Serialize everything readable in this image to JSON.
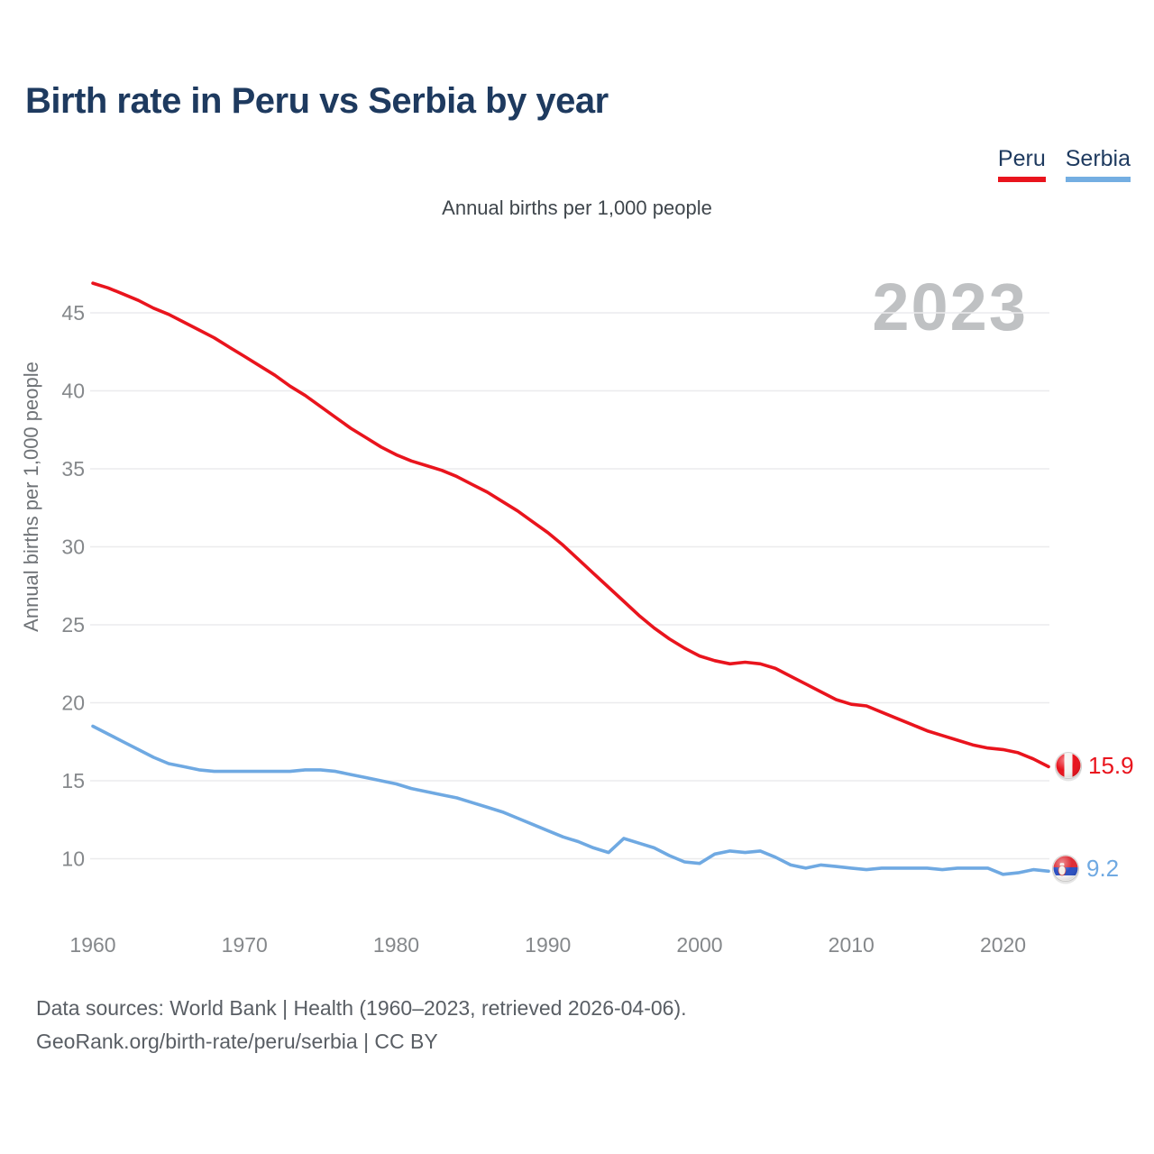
{
  "header": {
    "title": "Birth rate in Peru vs Serbia by year",
    "subtitle": "Annual births per 1,000 people"
  },
  "legend": {
    "items": [
      {
        "label": "Peru",
        "color": "#e9141d"
      },
      {
        "label": "Serbia",
        "color": "#74aee2"
      }
    ]
  },
  "watermark": "2023",
  "footer": {
    "line1": "Data sources: World Bank | Health (1960–2023, retrieved 2026-04-06).",
    "line2": "GeoRank.org/birth-rate/peru/serbia | CC BY"
  },
  "colors": {
    "peru_line": "#e9141d",
    "serbia_line": "#6fa9e2",
    "title_navy": "#1e3a5f",
    "grid": "#ebebed",
    "tick_gray": "#85888b",
    "watermark_gray": "#bfc1c3",
    "serbia_flag_red": "#dd2c35",
    "serbia_flag_blue": "#2a4fc2",
    "peru_flag_red": "#e8121c"
  },
  "chart_data": {
    "type": "line",
    "title": "Birth rate in Peru vs Serbia by year",
    "subtitle": "Annual births per 1,000 people",
    "ylabel": "Annual births per 1,000 people",
    "xlabel": "",
    "grid": "horizontal",
    "legend_position": "top-right",
    "watermark": "2023",
    "xlim": [
      1960,
      2023
    ],
    "ylim": [
      8,
      47.5
    ],
    "xticks": [
      1960,
      1970,
      1980,
      1990,
      2000,
      2010,
      2020
    ],
    "yticks": [
      10,
      15,
      20,
      25,
      30,
      35,
      40,
      45
    ],
    "x": [
      1960,
      1961,
      1962,
      1963,
      1964,
      1965,
      1966,
      1967,
      1968,
      1969,
      1970,
      1971,
      1972,
      1973,
      1974,
      1975,
      1976,
      1977,
      1978,
      1979,
      1980,
      1981,
      1982,
      1983,
      1984,
      1985,
      1986,
      1987,
      1988,
      1989,
      1990,
      1991,
      1992,
      1993,
      1994,
      1995,
      1996,
      1997,
      1998,
      1999,
      2000,
      2001,
      2002,
      2003,
      2004,
      2005,
      2006,
      2007,
      2008,
      2009,
      2010,
      2011,
      2012,
      2013,
      2014,
      2015,
      2016,
      2017,
      2018,
      2019,
      2020,
      2021,
      2022,
      2023
    ],
    "series": [
      {
        "name": "Peru",
        "color": "#e9141d",
        "end_label": "15.9",
        "end_value": 15.9,
        "values": [
          46.9,
          46.6,
          46.2,
          45.8,
          45.3,
          44.9,
          44.4,
          43.9,
          43.4,
          42.8,
          42.2,
          41.6,
          41.0,
          40.3,
          39.7,
          39.0,
          38.3,
          37.6,
          37.0,
          36.4,
          35.9,
          35.5,
          35.2,
          34.9,
          34.5,
          34.0,
          33.5,
          32.9,
          32.3,
          31.6,
          30.9,
          30.1,
          29.2,
          28.3,
          27.4,
          26.5,
          25.6,
          24.8,
          24.1,
          23.5,
          23.0,
          22.7,
          22.5,
          22.6,
          22.5,
          22.2,
          21.7,
          21.2,
          20.7,
          20.2,
          19.9,
          19.8,
          19.4,
          19.0,
          18.6,
          18.2,
          17.9,
          17.6,
          17.3,
          17.1,
          17.0,
          16.8,
          16.4,
          15.9
        ]
      },
      {
        "name": "Serbia",
        "color": "#6fa9e2",
        "end_label": "9.2",
        "end_value": 9.2,
        "values": [
          18.5,
          18.0,
          17.5,
          17.0,
          16.5,
          16.1,
          15.9,
          15.7,
          15.6,
          15.6,
          15.6,
          15.6,
          15.6,
          15.6,
          15.7,
          15.7,
          15.6,
          15.4,
          15.2,
          15.0,
          14.8,
          14.5,
          14.3,
          14.1,
          13.9,
          13.6,
          13.3,
          13.0,
          12.6,
          12.2,
          11.8,
          11.4,
          11.1,
          10.7,
          10.4,
          11.3,
          11.0,
          10.7,
          10.2,
          9.8,
          9.7,
          10.3,
          10.5,
          10.4,
          10.5,
          10.1,
          9.6,
          9.4,
          9.6,
          9.5,
          9.4,
          9.3,
          9.4,
          9.4,
          9.4,
          9.4,
          9.3,
          9.4,
          9.4,
          9.4,
          9.0,
          9.1,
          9.3,
          9.2
        ]
      }
    ]
  }
}
